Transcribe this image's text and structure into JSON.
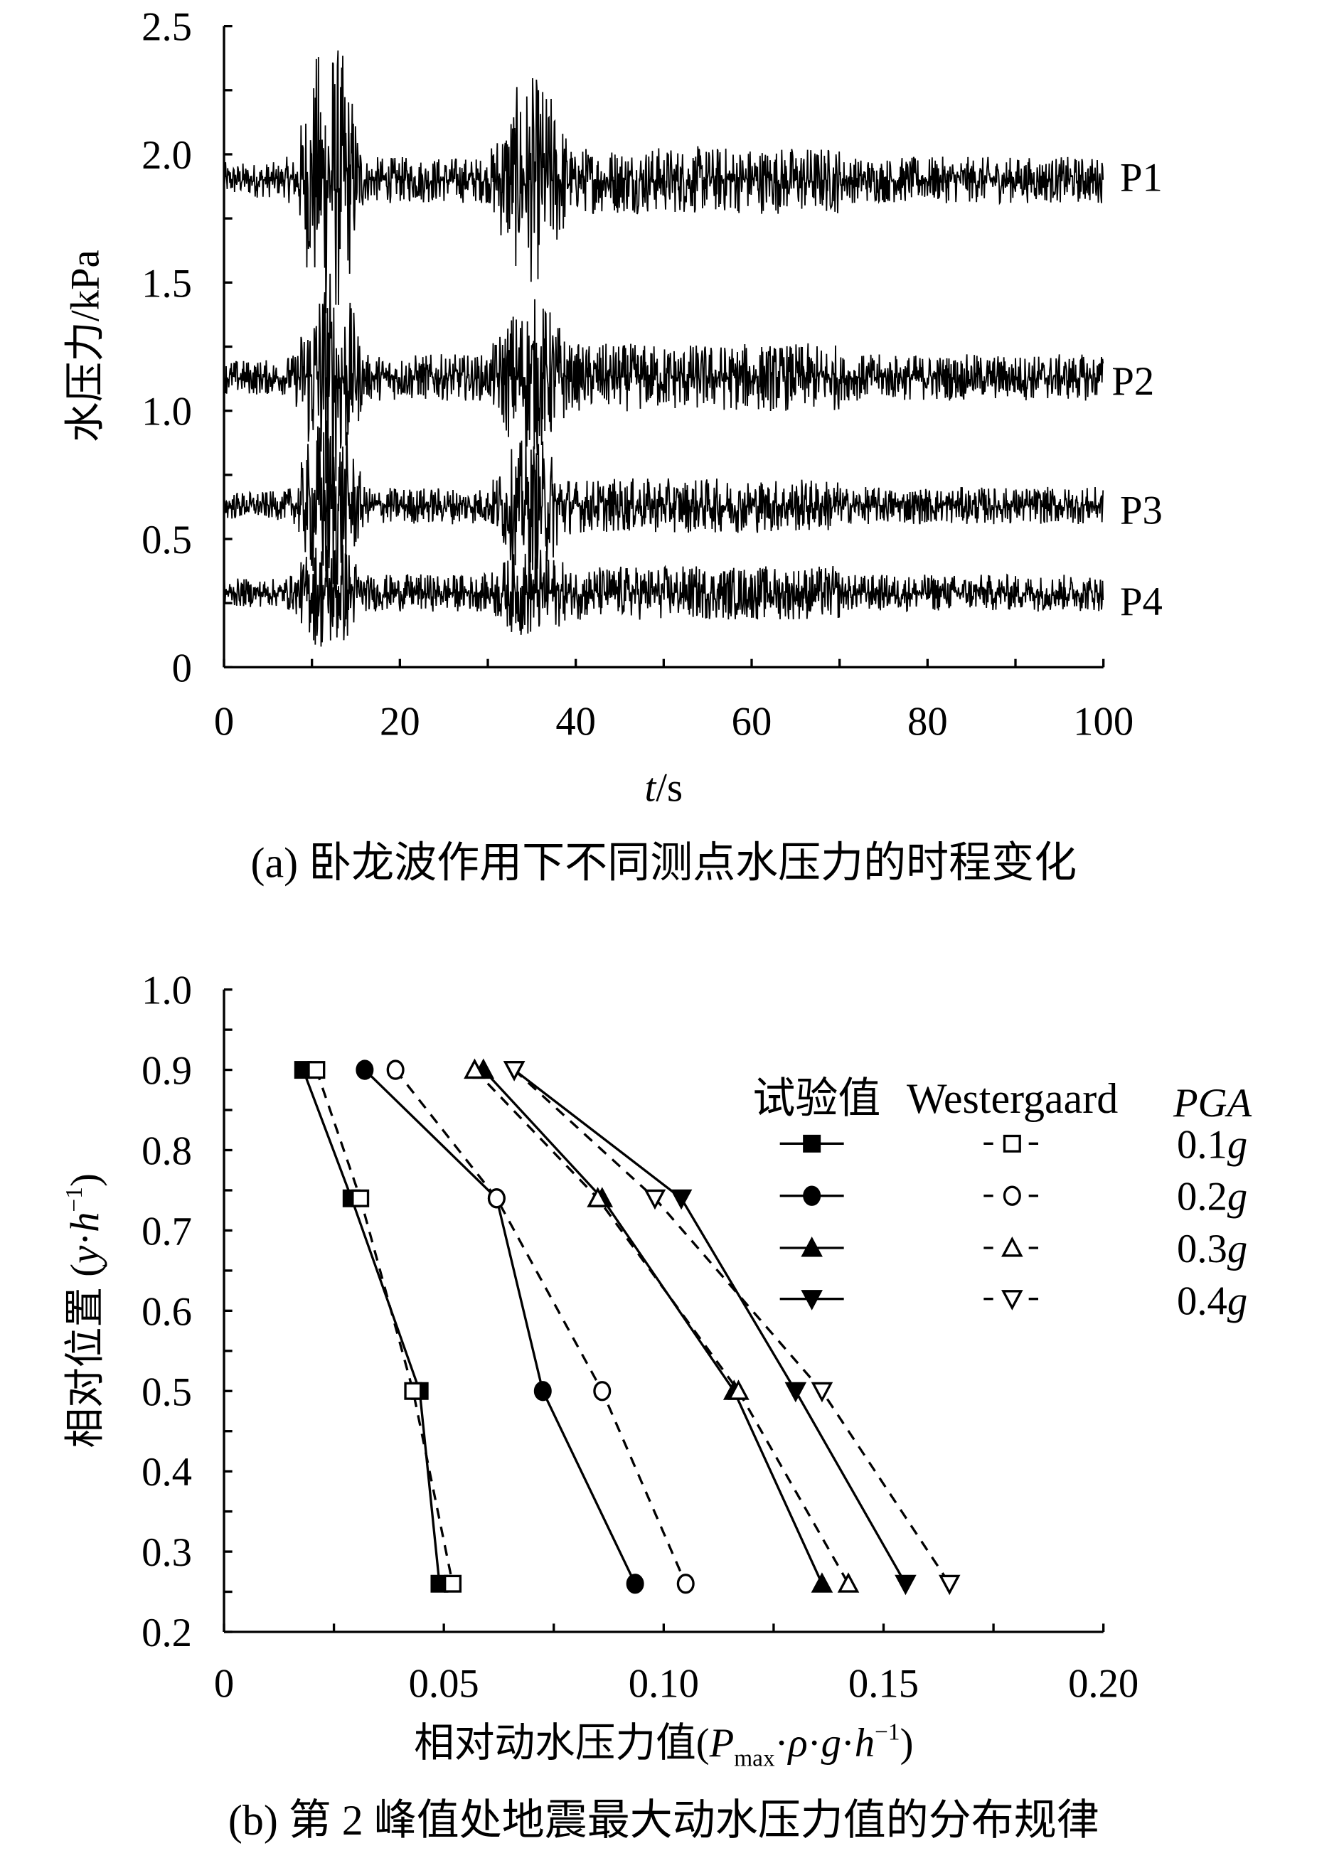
{
  "chart_data": [
    {
      "type": "line",
      "title": "(a) 卧龙波作用下不同测点水压力的时程变化",
      "xlabel_italic": "t",
      "xlabel_rest": "/s",
      "ylabel": "水压力/kPa",
      "xlim": [
        0,
        100
      ],
      "ylim": [
        0,
        2.5
      ],
      "x_ticks": [
        "0",
        "20",
        "40",
        "60",
        "80",
        "100"
      ],
      "y_ticks": [
        "0",
        "0.5",
        "1.0",
        "1.5",
        "2.0",
        "2.5"
      ],
      "series": [
        {
          "name": "P1",
          "baseline": 1.9,
          "base_amp": 0.05,
          "peak_amp": 0.35
        },
        {
          "name": "P2",
          "baseline": 1.13,
          "base_amp": 0.05,
          "peak_amp": 0.25
        },
        {
          "name": "P3",
          "baseline": 0.63,
          "base_amp": 0.04,
          "peak_amp": 0.22
        },
        {
          "name": "P4",
          "baseline": 0.29,
          "base_amp": 0.04,
          "peak_amp": 0.12
        }
      ],
      "bursts_s": [
        [
          8,
          16
        ],
        [
          30,
          40
        ]
      ]
    },
    {
      "type": "line",
      "title": "(b) 第 2 峰值处地震最大动水压力值的分布规律",
      "xlabel_pre": "相对动水压力值(",
      "xlabel_P": "P",
      "xlabel_sub": "max",
      "xlabel_mid1": "·",
      "xlabel_rho": "ρ",
      "xlabel_mid2": "·",
      "xlabel_g": "g",
      "xlabel_mid3": "·",
      "xlabel_h": "h",
      "xlabel_sup": "−1",
      "xlabel_post": ")",
      "ylabel_pre": "相对位置 (",
      "ylabel_y": "y",
      "ylabel_mid": "·",
      "ylabel_h": "h",
      "ylabel_sup": "−1",
      "ylabel_post": ")",
      "xlim": [
        0,
        0.2
      ],
      "ylim": [
        0.2,
        1.0
      ],
      "x_ticks": [
        "0",
        "0.05",
        "0.10",
        "0.15",
        "0.20"
      ],
      "y_ticks": [
        "0.2",
        "0.3",
        "0.4",
        "0.5",
        "0.6",
        "0.7",
        "0.8",
        "0.9",
        "1.0"
      ],
      "legend": {
        "col1": "试验值",
        "col2": "Westergaard",
        "col3": "PGA",
        "placement": "top-right",
        "rows": [
          {
            "num": "0.1",
            "unit": "g"
          },
          {
            "num": "0.2",
            "unit": "g"
          },
          {
            "num": "0.3",
            "unit": "g"
          },
          {
            "num": "0.4",
            "unit": "g"
          }
        ]
      },
      "y": [
        0.9,
        0.74,
        0.5,
        0.26
      ],
      "series": [
        {
          "name": "试验值 0.1g",
          "marker": "square",
          "filled": true,
          "dashed": false,
          "x": [
            0.018,
            0.029,
            0.0445,
            0.049
          ]
        },
        {
          "name": "Westergaard 0.1g",
          "marker": "square",
          "filled": false,
          "dashed": true,
          "x": [
            0.021,
            0.031,
            0.043,
            0.052
          ]
        },
        {
          "name": "试验值 0.2g",
          "marker": "circle",
          "filled": true,
          "dashed": false,
          "x": [
            0.032,
            0.062,
            0.0725,
            0.0935
          ]
        },
        {
          "name": "Westergaard 0.2g",
          "marker": "circle",
          "filled": false,
          "dashed": true,
          "x": [
            0.039,
            0.062,
            0.086,
            0.105
          ]
        },
        {
          "name": "试验值 0.3g",
          "marker": "triangle-up",
          "filled": true,
          "dashed": false,
          "x": [
            0.059,
            0.086,
            0.116,
            0.136
          ]
        },
        {
          "name": "Westergaard 0.3g",
          "marker": "triangle-up",
          "filled": false,
          "dashed": true,
          "x": [
            0.057,
            0.085,
            0.117,
            0.142
          ]
        },
        {
          "name": "试验值 0.4g",
          "marker": "triangle-down",
          "filled": true,
          "dashed": false,
          "x": [
            0.066,
            0.104,
            0.13,
            0.155
          ]
        },
        {
          "name": "Westergaard 0.4g",
          "marker": "triangle-down",
          "filled": false,
          "dashed": true,
          "x": [
            0.066,
            0.098,
            0.136,
            0.165
          ]
        }
      ]
    }
  ]
}
